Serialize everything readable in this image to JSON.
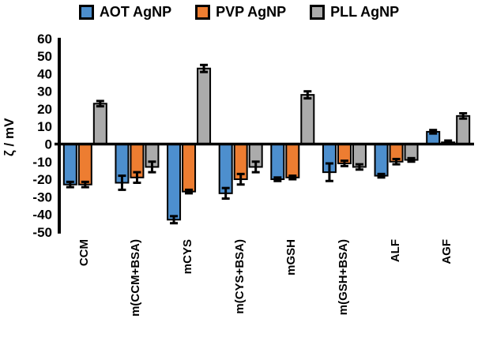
{
  "chart_data": {
    "type": "bar",
    "title": "",
    "ylabel": "ζ / mV",
    "xlabel": "",
    "ylim": [
      -50,
      60
    ],
    "y_ticks": [
      60,
      50,
      40,
      30,
      20,
      10,
      0,
      -10,
      -20,
      -30,
      -40,
      -50
    ],
    "grid": false,
    "legend_position": "top",
    "error_bars": true,
    "categories": [
      "CCM",
      "m(CCM+BSA)",
      "mCYS",
      "m(CYS+BSA)",
      "mGSH",
      "m(GSH+BSA)",
      "ALF",
      "AGF"
    ],
    "series": [
      {
        "name": "AOT AgNP",
        "color": "#4D8FCE",
        "values": [
          -23,
          -22,
          -43,
          -28,
          -20,
          -16,
          -18,
          7
        ],
        "errors": [
          1.5,
          4,
          2,
          3,
          1,
          5,
          1,
          1
        ]
      },
      {
        "name": "PVP AgNP",
        "color": "#ED7D31",
        "values": [
          -23,
          -19,
          -27,
          -20,
          -19,
          -11,
          -10,
          1
        ],
        "errors": [
          1.5,
          3,
          1,
          3,
          1,
          1.5,
          1.5,
          1
        ]
      },
      {
        "name": "PLL AgNP",
        "color": "#ABABAB",
        "values": [
          23,
          -13,
          43,
          -13,
          28,
          -13,
          -9,
          16
        ],
        "errors": [
          1.5,
          3,
          2,
          3,
          2,
          1.5,
          1,
          1.5
        ]
      }
    ],
    "axis_color": "#000000",
    "bar_outline_color": "#000000"
  }
}
